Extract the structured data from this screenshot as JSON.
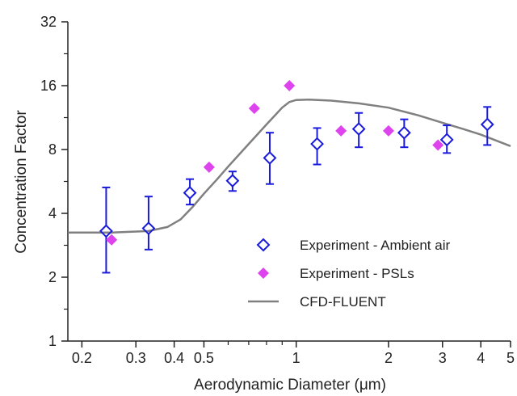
{
  "chart_data": {
    "type": "scatter",
    "xlabel": "Aerodynamic Diameter (μm)",
    "ylabel": "Concentration Factor",
    "x_scale": "log",
    "y_scale": "log2",
    "xlim": [
      0.18,
      5
    ],
    "ylim": [
      1,
      32
    ],
    "x_ticks": [
      {
        "value": 0.2,
        "label": "0.2"
      },
      {
        "value": 0.3,
        "label": "0.3"
      },
      {
        "value": 0.4,
        "label": "0.4"
      },
      {
        "value": 0.5,
        "label": "0.5"
      },
      {
        "value": 1,
        "label": "1"
      },
      {
        "value": 2,
        "label": "2"
      },
      {
        "value": 3,
        "label": "3"
      },
      {
        "value": 4,
        "label": "4"
      },
      {
        "value": 5,
        "label": "5"
      }
    ],
    "x_minor_ticks": [
      0.6,
      0.7,
      0.8,
      0.9
    ],
    "y_ticks": [
      {
        "value": 1,
        "label": "1"
      },
      {
        "value": 2,
        "label": "2"
      },
      {
        "value": 4,
        "label": "4"
      },
      {
        "value": 8,
        "label": "8"
      },
      {
        "value": 16,
        "label": "16"
      },
      {
        "value": 32,
        "label": "32"
      }
    ],
    "legend_position": "bottom-right",
    "series": [
      {
        "name": "Experiment - Ambient air",
        "kind": "points-with-error-bars",
        "marker": "open-diamond",
        "color": "#1a1adc",
        "points": [
          {
            "x": 0.24,
            "y": 3.3,
            "ylow": 2.1,
            "yhigh": 5.3
          },
          {
            "x": 0.33,
            "y": 3.4,
            "ylow": 2.7,
            "yhigh": 4.8
          },
          {
            "x": 0.45,
            "y": 5.0,
            "ylow": 4.4,
            "yhigh": 5.8
          },
          {
            "x": 0.62,
            "y": 5.7,
            "ylow": 5.1,
            "yhigh": 6.3
          },
          {
            "x": 0.82,
            "y": 7.3,
            "ylow": 5.5,
            "yhigh": 9.6
          },
          {
            "x": 1.17,
            "y": 8.5,
            "ylow": 6.8,
            "yhigh": 10.1
          },
          {
            "x": 1.6,
            "y": 10.0,
            "ylow": 8.2,
            "yhigh": 11.9
          },
          {
            "x": 2.25,
            "y": 9.6,
            "ylow": 8.2,
            "yhigh": 11.1
          },
          {
            "x": 3.1,
            "y": 8.9,
            "ylow": 7.7,
            "yhigh": 10.4
          },
          {
            "x": 4.2,
            "y": 10.5,
            "ylow": 8.4,
            "yhigh": 12.7
          }
        ]
      },
      {
        "name": "Experiment - PSLs",
        "kind": "points",
        "marker": "filled-diamond",
        "color": "#dd44ee",
        "points": [
          {
            "x": 0.25,
            "y": 3.0
          },
          {
            "x": 0.52,
            "y": 6.6
          },
          {
            "x": 0.73,
            "y": 12.5
          },
          {
            "x": 0.95,
            "y": 16.0
          },
          {
            "x": 1.4,
            "y": 9.8
          },
          {
            "x": 2.0,
            "y": 9.8
          },
          {
            "x": 2.9,
            "y": 8.4
          }
        ]
      },
      {
        "name": "CFD-FLUENT",
        "kind": "line",
        "color": "#808080",
        "points": [
          {
            "x": 0.18,
            "y": 3.25
          },
          {
            "x": 0.25,
            "y": 3.25
          },
          {
            "x": 0.33,
            "y": 3.3
          },
          {
            "x": 0.38,
            "y": 3.45
          },
          {
            "x": 0.42,
            "y": 3.75
          },
          {
            "x": 0.46,
            "y": 4.3
          },
          {
            "x": 0.5,
            "y": 4.95
          },
          {
            "x": 0.55,
            "y": 5.75
          },
          {
            "x": 0.6,
            "y": 6.65
          },
          {
            "x": 0.7,
            "y": 8.5
          },
          {
            "x": 0.8,
            "y": 10.5
          },
          {
            "x": 0.9,
            "y": 12.6
          },
          {
            "x": 0.95,
            "y": 13.4
          },
          {
            "x": 1.0,
            "y": 13.7
          },
          {
            "x": 1.1,
            "y": 13.75
          },
          {
            "x": 1.3,
            "y": 13.6
          },
          {
            "x": 1.6,
            "y": 13.2
          },
          {
            "x": 2.0,
            "y": 12.6
          },
          {
            "x": 2.5,
            "y": 11.6
          },
          {
            "x": 3.0,
            "y": 10.7
          },
          {
            "x": 3.5,
            "y": 10.0
          },
          {
            "x": 4.0,
            "y": 9.4
          },
          {
            "x": 4.5,
            "y": 8.8
          },
          {
            "x": 5.0,
            "y": 8.3
          }
        ]
      }
    ]
  }
}
